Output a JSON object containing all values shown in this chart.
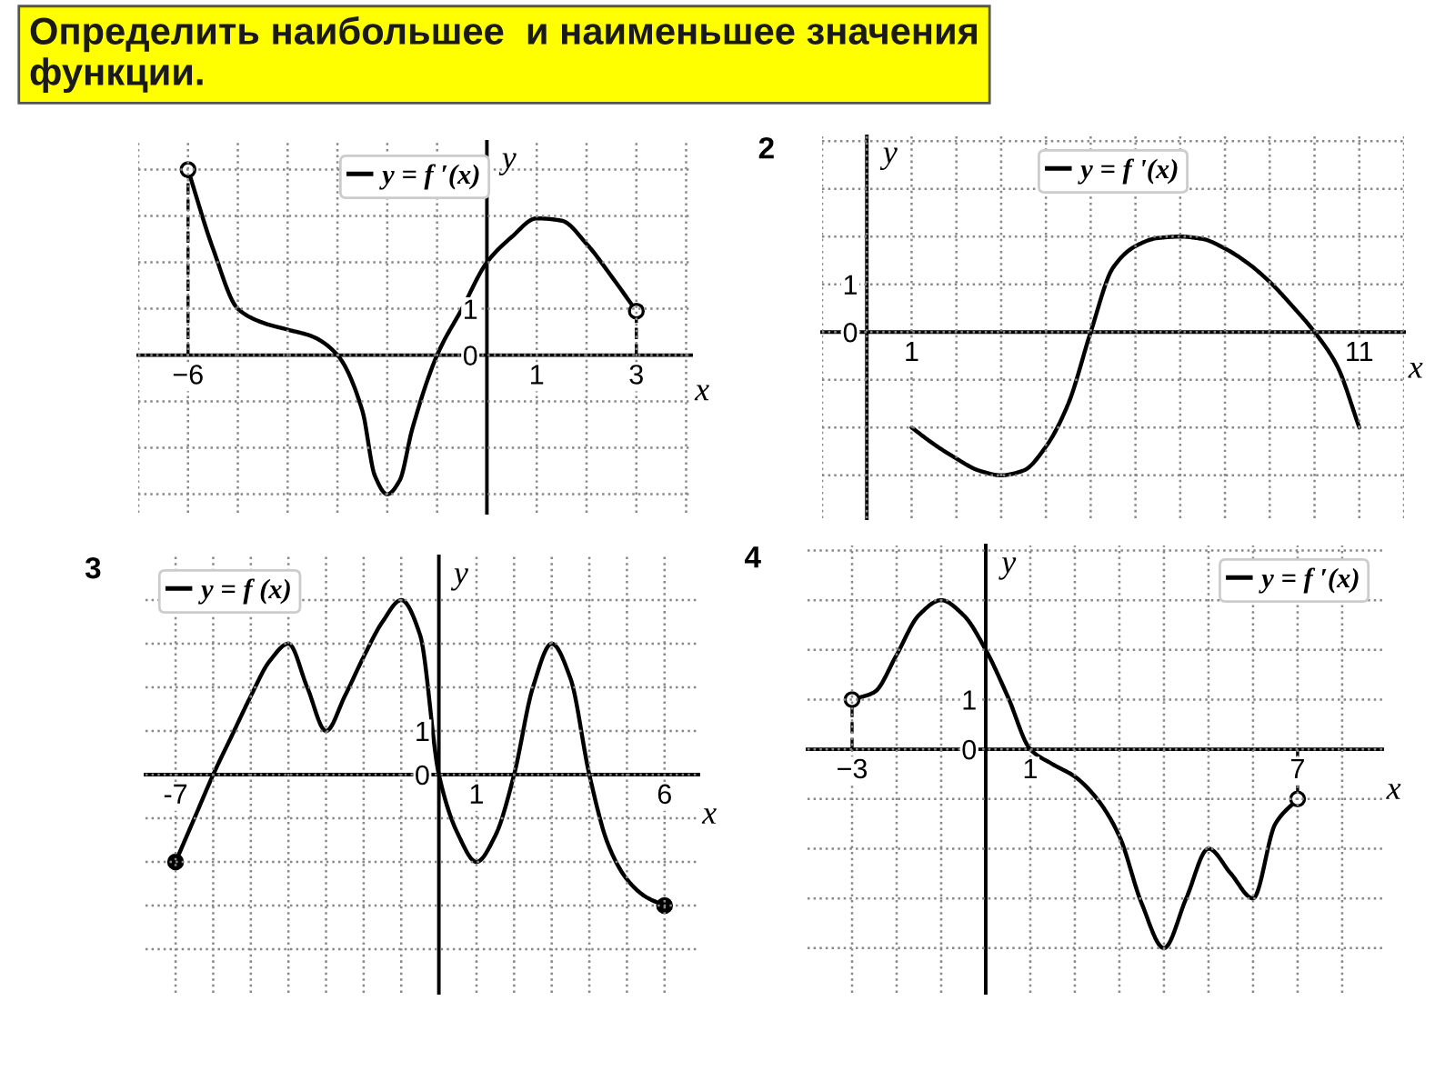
{
  "chart_data": [
    {
      "type": "line",
      "title": "Определить наибольшее  и наименьшее значения\nфункции.",
      "xlabel": "x",
      "ylabel": "y",
      "legend": "top",
      "grid": true,
      "xlim": [
        -7,
        4.1
      ],
      "ylim": [
        -3.4,
        4.6
      ],
      "xticks": [
        {
          "value": -7,
          "label": null
        },
        {
          "value": -6,
          "label": "−6"
        },
        {
          "value": -5,
          "label": null
        },
        {
          "value": -4,
          "label": null
        },
        {
          "value": -3,
          "label": null
        },
        {
          "value": -2,
          "label": null
        },
        {
          "value": -1,
          "label": null
        },
        1,
        {
          "value": 2,
          "label": null
        },
        3,
        {
          "value": 4,
          "label": null
        }
      ],
      "yticks": [
        {
          "value": -3,
          "label": null
        },
        {
          "value": -2,
          "label": null
        },
        {
          "value": -1,
          "label": null
        },
        0,
        1,
        {
          "value": 2,
          "label": null
        },
        {
          "value": 3,
          "label": null
        },
        {
          "value": 4,
          "label": null
        }
      ],
      "series": [
        {
          "name": "y = f ′(x)",
          "type": "line",
          "color": "#000000",
          "x": [
            -6,
            -5.5,
            -5,
            -4.5,
            -4,
            -3.5,
            -3,
            -2.5,
            -2.25,
            -2,
            -1.75,
            -1.5,
            -1,
            -0.5,
            0,
            0.5,
            1,
            1.5,
            2,
            2.5,
            3
          ],
          "values": [
            4,
            2.3,
            1.0,
            0.7,
            0.55,
            0.4,
            0,
            -1.2,
            -2.6,
            -3,
            -2.7,
            -1.6,
            0,
            1.0,
            2,
            2.55,
            2.95,
            2.9,
            2.4,
            1.7,
            0.95
          ]
        },
        {
          "type": "line",
          "line_style": "dashed",
          "color": "#000000",
          "x": [
            -6,
            -6
          ],
          "values": [
            0,
            4
          ]
        },
        {
          "type": "line",
          "line_style": "dashed",
          "color": "#000000",
          "x": [
            3,
            3
          ],
          "values": [
            0,
            0.95
          ]
        },
        {
          "type": "scatter",
          "color": "#ffffff",
          "x": [
            -6,
            3
          ],
          "values": [
            4,
            0.95
          ]
        }
      ]
    },
    {
      "type": "line",
      "xlabel": "x",
      "ylabel": "y",
      "legend": "top",
      "grid": true,
      "annotations": [
        "2"
      ],
      "xlim": [
        -1,
        12
      ],
      "ylim": [
        -3.9,
        4.1
      ],
      "xticks": [
        {
          "value": -1,
          "label": null
        },
        {
          "value": 0,
          "label": null
        },
        1,
        {
          "value": 2,
          "label": null
        },
        {
          "value": 3,
          "label": null
        },
        {
          "value": 4,
          "label": null
        },
        {
          "value": 5,
          "label": null
        },
        {
          "value": 6,
          "label": null
        },
        {
          "value": 7,
          "label": null
        },
        {
          "value": 8,
          "label": null
        },
        {
          "value": 9,
          "label": null
        },
        {
          "value": 10,
          "label": null
        },
        11,
        {
          "value": 12,
          "label": null
        }
      ],
      "yticks": [
        {
          "value": -3,
          "label": null
        },
        {
          "value": -2,
          "label": null
        },
        {
          "value": -1,
          "label": null
        },
        0,
        1,
        {
          "value": 2,
          "label": null
        },
        {
          "value": 3,
          "label": null
        },
        {
          "value": 4,
          "label": null
        }
      ],
      "series": [
        {
          "name": "y = f '(x)",
          "type": "line",
          "color": "#000000",
          "x": [
            1,
            1.5,
            2,
            2.5,
            3,
            3.5,
            4,
            4.5,
            5,
            5.5,
            6,
            6.5,
            7,
            7.5,
            8,
            8.5,
            9,
            9.5,
            10,
            10.5,
            11
          ],
          "values": [
            -2,
            -2.35,
            -2.65,
            -2.9,
            -3,
            -2.9,
            -2.4,
            -1.5,
            0,
            1.35,
            1.8,
            1.97,
            2,
            1.95,
            1.75,
            1.45,
            1.05,
            0.55,
            0,
            -0.7,
            -2
          ]
        }
      ]
    },
    {
      "type": "line",
      "xlabel": "x",
      "ylabel": "y",
      "legend": "top left",
      "grid": true,
      "annotations": [
        "3"
      ],
      "xlim": [
        -7.8,
        6.9
      ],
      "ylim": [
        -5,
        5
      ],
      "xticks": [
        {
          "value": -7,
          "label": "-7"
        },
        {
          "value": -6,
          "label": null
        },
        {
          "value": -5,
          "label": null
        },
        {
          "value": -4,
          "label": null
        },
        {
          "value": -3,
          "label": null
        },
        {
          "value": -2,
          "label": null
        },
        {
          "value": -1,
          "label": null
        },
        1,
        {
          "value": 2,
          "label": null
        },
        {
          "value": 3,
          "label": null
        },
        {
          "value": 4,
          "label": null
        },
        {
          "value": 5,
          "label": null
        },
        6
      ],
      "yticks": [
        {
          "value": -4,
          "label": null
        },
        {
          "value": -3,
          "label": null
        },
        {
          "value": -2,
          "label": null
        },
        {
          "value": -1,
          "label": null
        },
        0,
        1,
        {
          "value": 2,
          "label": null
        },
        {
          "value": 3,
          "label": null
        },
        {
          "value": 4,
          "label": null
        }
      ],
      "series": [
        {
          "name": "y = f (x)",
          "type": "line",
          "color": "#000000",
          "x": [
            -7,
            -6.5,
            -6,
            -5.5,
            -5,
            -4.5,
            -4,
            -3.5,
            -3,
            -2.5,
            -2,
            -1.5,
            -1,
            -0.5,
            0,
            0.5,
            1,
            1.5,
            2,
            2.5,
            3,
            3.5,
            4,
            4.5,
            5,
            5.5,
            6
          ],
          "values": [
            -2,
            -1,
            0,
            0.9,
            1.8,
            2.6,
            3,
            2.0,
            1,
            1.8,
            2.7,
            3.5,
            4,
            3.2,
            0,
            -1.35,
            -2,
            -1.4,
            0,
            2,
            3,
            2.2,
            0,
            -1.6,
            -2.4,
            -2.8,
            -3
          ]
        },
        {
          "type": "scatter",
          "color": "#000000",
          "x": [
            -7,
            6
          ],
          "values": [
            -2,
            -3
          ]
        }
      ]
    },
    {
      "type": "line",
      "xlabel": "x",
      "ylabel": "y",
      "legend": "top right",
      "grid": true,
      "annotations": [
        "4"
      ],
      "xlim": [
        -4,
        8.9
      ],
      "ylim": [
        -4.9,
        4.1
      ],
      "xticks": [
        {
          "value": -3,
          "label": "−3"
        },
        {
          "value": -2,
          "label": null
        },
        {
          "value": -1,
          "label": null
        },
        1,
        {
          "value": 2,
          "label": null
        },
        {
          "value": 3,
          "label": null
        },
        {
          "value": 4,
          "label": null
        },
        {
          "value": 5,
          "label": null
        },
        {
          "value": 6,
          "label": null
        },
        7,
        {
          "value": 8,
          "label": null
        }
      ],
      "yticks": [
        {
          "value": -4,
          "label": null
        },
        {
          "value": -3,
          "label": null
        },
        {
          "value": -2,
          "label": null
        },
        {
          "value": -1,
          "label": null
        },
        0,
        1,
        {
          "value": 2,
          "label": null
        },
        {
          "value": 3,
          "label": null
        },
        {
          "value": 4,
          "label": null
        }
      ],
      "series": [
        {
          "name": "y = f ′(x)",
          "type": "line",
          "color": "#000000",
          "x": [
            -3,
            -2.5,
            -2,
            -1.5,
            -1,
            -0.5,
            0,
            0.5,
            1,
            1.5,
            2,
            2.5,
            3,
            3.5,
            4,
            4.5,
            5,
            5.5,
            6,
            6.5,
            7
          ],
          "values": [
            1,
            1.15,
            1.9,
            2.7,
            3,
            2.7,
            2.0,
            1.05,
            0,
            -0.3,
            -0.55,
            -1.0,
            -1.75,
            -3.1,
            -4,
            -3,
            -2,
            -2.5,
            -3,
            -1.5,
            -1
          ]
        },
        {
          "type": "line",
          "line_style": "dashed",
          "color": "#000000",
          "x": [
            -3,
            -3
          ],
          "values": [
            0,
            1
          ]
        },
        {
          "type": "line",
          "line_style": "dashed",
          "color": "#000000",
          "x": [
            7,
            7
          ],
          "values": [
            0,
            -1
          ]
        },
        {
          "type": "scatter",
          "color": "#ffffff",
          "x": [
            -3,
            7
          ],
          "values": [
            1,
            -1
          ]
        }
      ]
    }
  ]
}
